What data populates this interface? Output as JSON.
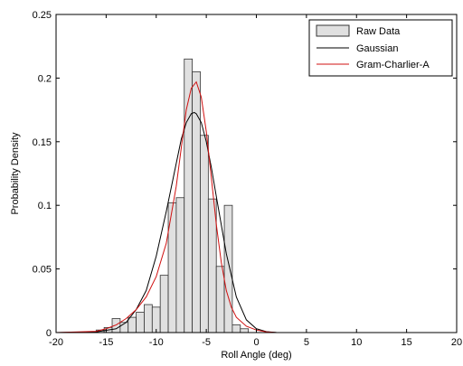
{
  "chart_data": {
    "type": "bar",
    "xlabel": "Roll Angle (deg)",
    "ylabel": "Probability Density",
    "xlim": [
      -20,
      20
    ],
    "ylim": [
      0,
      0.25
    ],
    "xticks": [
      "-20",
      "-15",
      "-10",
      "-5",
      "0",
      "5",
      "10",
      "15",
      "20"
    ],
    "yticks": [
      "0",
      "0.05",
      "0.1",
      "0.15",
      "0.2",
      "0.25"
    ],
    "grid": false,
    "legend_position": "top-right",
    "colors": {
      "bar_fill": "#e0e0e0",
      "bar_edge": "#333333",
      "gaussian": "#000000",
      "gram_charlier": "#d01010"
    },
    "bin_width": 0.8,
    "bins": [
      {
        "x": -15.6,
        "y": 0.002
      },
      {
        "x": -14.8,
        "y": 0.004
      },
      {
        "x": -14.0,
        "y": 0.011
      },
      {
        "x": -13.2,
        "y": 0.008
      },
      {
        "x": -12.4,
        "y": 0.012
      },
      {
        "x": -11.6,
        "y": 0.016
      },
      {
        "x": -10.8,
        "y": 0.022
      },
      {
        "x": -10.0,
        "y": 0.02
      },
      {
        "x": -9.2,
        "y": 0.045
      },
      {
        "x": -8.4,
        "y": 0.102
      },
      {
        "x": -7.6,
        "y": 0.106
      },
      {
        "x": -6.8,
        "y": 0.215
      },
      {
        "x": -6.0,
        "y": 0.205
      },
      {
        "x": -5.2,
        "y": 0.155
      },
      {
        "x": -4.4,
        "y": 0.105
      },
      {
        "x": -3.6,
        "y": 0.052
      },
      {
        "x": -2.8,
        "y": 0.1
      },
      {
        "x": -2.0,
        "y": 0.006
      },
      {
        "x": -1.2,
        "y": 0.003
      }
    ],
    "series": [
      {
        "name": "Gaussian",
        "x": [
          -20,
          -16,
          -14,
          -13,
          -12,
          -11,
          -10,
          -9,
          -8,
          -7.5,
          -7,
          -6.5,
          -6.2,
          -6,
          -5.5,
          -5,
          -4.5,
          -4,
          -3,
          -2,
          -1,
          0,
          1,
          2,
          4,
          6,
          10,
          14.5
        ],
        "y": [
          0,
          0.0005,
          0.003,
          0.008,
          0.018,
          0.033,
          0.06,
          0.095,
          0.133,
          0.152,
          0.165,
          0.172,
          0.173,
          0.172,
          0.165,
          0.15,
          0.13,
          0.107,
          0.062,
          0.028,
          0.01,
          0.003,
          0.0007,
          0.0001,
          0,
          0,
          0,
          0
        ]
      },
      {
        "name": "Gram-Charlier-A",
        "x": [
          -20,
          -16,
          -15,
          -14,
          -13,
          -12,
          -11,
          -10,
          -9,
          -8,
          -7.5,
          -7,
          -6.5,
          -6,
          -5.5,
          -5,
          -4.5,
          -4,
          -3.5,
          -3,
          -2.5,
          -2,
          -1,
          0,
          1,
          2,
          5,
          10,
          14.5
        ],
        "y": [
          0,
          0.001,
          0.003,
          0.006,
          0.011,
          0.018,
          0.028,
          0.044,
          0.07,
          0.115,
          0.145,
          0.175,
          0.192,
          0.197,
          0.185,
          0.158,
          0.122,
          0.085,
          0.055,
          0.033,
          0.02,
          0.012,
          0.005,
          0.002,
          0.0005,
          0,
          0,
          0,
          0
        ]
      }
    ],
    "legend": [
      {
        "label": "Raw Data",
        "kind": "patch"
      },
      {
        "label": "Gaussian",
        "kind": "line"
      },
      {
        "label": "Gram-Charlier-A",
        "kind": "line"
      }
    ]
  }
}
